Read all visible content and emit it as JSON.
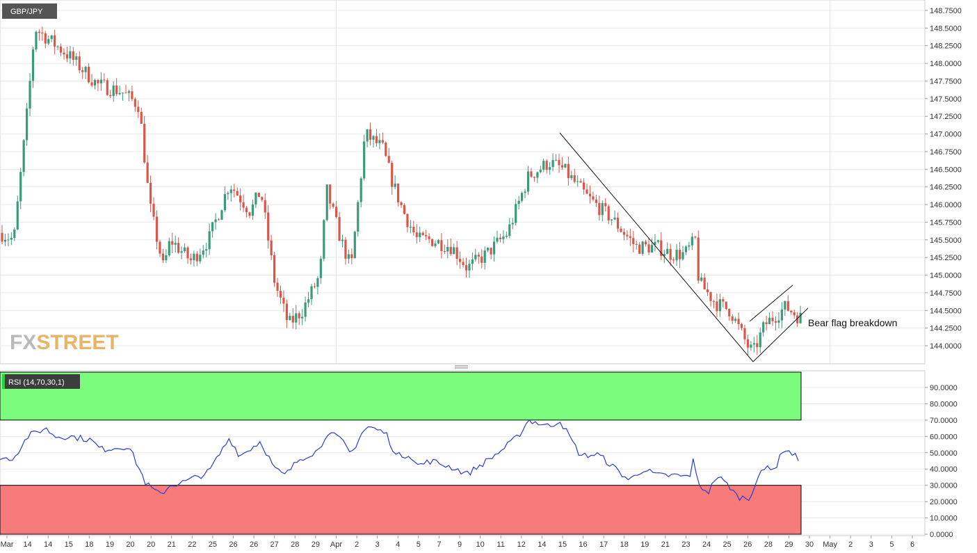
{
  "chart_data": [
    {
      "type": "candlestick",
      "symbol": "GBP/JPY",
      "annotation": "Bear flag breakdown",
      "watermark": "FXSTREET",
      "y_ticks": [
        "148.7500",
        "148.5000",
        "148.2500",
        "148.0000",
        "147.7500",
        "147.5000",
        "147.2500",
        "147.0000",
        "146.7500",
        "146.5000",
        "146.2500",
        "146.0000",
        "145.7500",
        "145.5000",
        "145.2500",
        "145.0000",
        "144.7500",
        "144.5000",
        "144.2500",
        "144.0000"
      ],
      "ylim": [
        143.8,
        148.8
      ],
      "x_labels": [
        "Mar",
        "14",
        "14",
        "15",
        "18",
        "19",
        "20",
        "20",
        "21",
        "22",
        "25",
        "26",
        "26",
        "27",
        "28",
        "29",
        "Apr",
        "2",
        "3",
        "4",
        "5",
        "7",
        "9",
        "10",
        "11",
        "12",
        "14",
        "15",
        "16",
        "17",
        "18",
        "19",
        "21",
        "23",
        "24",
        "25",
        "26",
        "28",
        "29",
        "30",
        "May",
        "2",
        "3",
        "5",
        "6"
      ],
      "trendlines": [
        {
          "from": [
            146.99,
            15.5
          ],
          "to": [
            143.82,
            25.4
          ]
        },
        {
          "from": [
            143.82,
            25.4
          ],
          "to": [
            144.53,
            29.4
          ]
        },
        {
          "from": [
            144.28,
            25.3
          ],
          "to": [
            144.83,
            28.6
          ]
        }
      ],
      "grid": true
    },
    {
      "type": "line",
      "indicator": "RSI (14,70,30,1)",
      "y_ticks": [
        "90.0000",
        "80.0000",
        "70.0000",
        "60.0000",
        "50.0000",
        "40.0000",
        "30.0000",
        "20.0000",
        "10.0000",
        "0.0000"
      ],
      "ylim": [
        0,
        99
      ],
      "overbought": 70,
      "oversold": 30,
      "colors": {
        "line": "#2a3bd6",
        "overbought_zone": "#7cfc7c",
        "oversold_zone": "#f87b7b"
      }
    }
  ],
  "colors": {
    "up": "#3a9b7a",
    "down": "#d9574a",
    "tag_bg": "#555555",
    "grid": "#e8e8e8",
    "watermark_fx": "#b9b9b9",
    "watermark_street": "#e8b46a"
  }
}
